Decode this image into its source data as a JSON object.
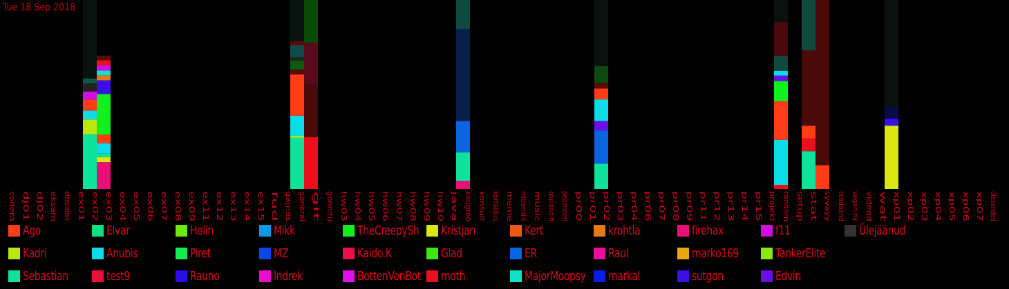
{
  "date_label": "Tue 18 Sep 2018",
  "chart_data": {
    "type": "bar",
    "stacked": true,
    "title": "",
    "xlabel": "",
    "ylabel": "",
    "ylim": [
      0,
      1
    ],
    "grid": false,
    "legend": "bottom",
    "categories": [
      "codera",
      "dj01",
      "dj02",
      "eksam",
      "ettepanek",
      "ex01",
      "ex02",
      "ex03",
      "ex04",
      "ex05",
      "ex06",
      "ex07",
      "ex08",
      "ex09",
      "ex11",
      "ex12",
      "ex13",
      "ex14",
      "ex15",
      "fud",
      "games",
      "general",
      "git",
      "gonnitu",
      "hw03",
      "hw04",
      "hw05",
      "hw06",
      "hw07",
      "hw08",
      "hw09",
      "hw10",
      "java",
      "kaugtöö",
      "konsult",
      "korraldus",
      "meme",
      "mittemilik",
      "music",
      "olulised-fi",
      "pealmoeri",
      "pr00",
      "pr01",
      "pr02",
      "pr03",
      "pr04",
      "pr06",
      "pr07",
      "pr08",
      "pr09",
      "pr11",
      "pr12",
      "pr13",
      "pr14",
      "pr15",
      "projekt",
      "random",
      "setup",
      "stat",
      "syvayy",
      "teadaand",
      "vegan-tik",
      "videod",
      "wat",
      "xp01",
      "xp02",
      "xp03",
      "xp04",
      "xp05",
      "xp06",
      "xp07",
      "ülesanded"
    ],
    "stacks": {
      "ex02": [
        [
          0.289,
          "#0ee29c"
        ],
        [
          0.079,
          "#b8e80f"
        ],
        [
          0.047,
          "#0cdbe8"
        ],
        [
          0.058,
          "#ff3c14"
        ],
        [
          0.043,
          "#cf0fe0"
        ],
        [
          0.044,
          "#222222"
        ],
        [
          0.025,
          "#0e5a4a"
        ],
        [
          0.415,
          "#0a120e"
        ]
      ],
      "ex03": [
        [
          0.142,
          "#ea0e78"
        ],
        [
          0.027,
          "#d9e80e"
        ],
        [
          0.018,
          "#0ee29c"
        ],
        [
          0.055,
          "#0cdbe8"
        ],
        [
          0.046,
          "#ff3c14"
        ],
        [
          0.215,
          "#0ff01e"
        ],
        [
          0.072,
          "#3a0fe8"
        ],
        [
          0.026,
          "#e57a14"
        ],
        [
          0.025,
          "#0ee2c9"
        ],
        [
          0.03,
          "#cf0fe0"
        ],
        [
          0.025,
          "#ec0e1a"
        ],
        [
          0.025,
          "#5a0a0a"
        ],
        [
          0.294,
          "#000000"
        ]
      ],
      "general": [
        [
          0.272,
          "#0ee29c"
        ],
        [
          0.009,
          "#b8e80f"
        ],
        [
          0.107,
          "#0cdbe8"
        ],
        [
          0.218,
          "#ff3c14"
        ],
        [
          0.026,
          "#5a0a0a"
        ],
        [
          0.048,
          "#0e5a0e"
        ],
        [
          0.016,
          "#222222"
        ],
        [
          0.066,
          "#0e4a4a"
        ],
        [
          0.022,
          "#5a0a0a"
        ],
        [
          0.216,
          "#0a120e"
        ]
      ],
      "git": [
        [
          0.275,
          "#ec0e1a"
        ],
        [
          0.278,
          "#4a0a0a"
        ],
        [
          0.221,
          "#5a0a1a"
        ],
        [
          0.226,
          "#0a4a0a"
        ]
      ],
      "kaugtöö": [
        [
          0.043,
          "#ea0e78"
        ],
        [
          0.151,
          "#0ee29c"
        ],
        [
          0.166,
          "#0a64e0"
        ],
        [
          0.486,
          "#0a1e4a"
        ],
        [
          0.154,
          "#0e4a40"
        ]
      ],
      "pr02": [
        [
          0.134,
          "#0ee29c"
        ],
        [
          0.176,
          "#0a64e0"
        ],
        [
          0.05,
          "#6a0fe8"
        ],
        [
          0.114,
          "#0cdbe8"
        ],
        [
          0.058,
          "#ff3c14"
        ],
        [
          0.029,
          "#5a0a0a"
        ],
        [
          0.09,
          "#0e4a0e"
        ],
        [
          0.349,
          "#0a120e"
        ]
      ],
      "random": [
        [
          0.022,
          "#ec0e1a"
        ],
        [
          0.238,
          "#0cdbe8"
        ],
        [
          0.205,
          "#ff3c14"
        ],
        [
          0.106,
          "#0ff01e"
        ],
        [
          0.029,
          "#6a0fe8"
        ],
        [
          0.025,
          "#0cdbe8"
        ],
        [
          0.08,
          "#0e4a40"
        ],
        [
          0.177,
          "#4a0a0a"
        ],
        [
          0.118,
          "#0a120e"
        ]
      ],
      "stat": [
        [
          0.2,
          "#0ee29c"
        ],
        [
          0.068,
          "#ec0e1a"
        ],
        [
          0.067,
          "#ff3c14"
        ],
        [
          0.4,
          "#4a0a0a"
        ],
        [
          0.265,
          "#0e4a40"
        ]
      ],
      "syvayy": [
        [
          0.126,
          "#ff3c14"
        ],
        [
          0.874,
          "#4a0a0a"
        ]
      ],
      "xp01": [
        [
          0.335,
          "#d9e80e"
        ],
        [
          0.037,
          "#3a0fe8"
        ],
        [
          0.062,
          "#0a0a4a"
        ],
        [
          0.566,
          "#0a120e"
        ]
      ]
    },
    "series": [
      {
        "name": "Ago",
        "color": "#ff3c14"
      },
      {
        "name": "Kadri",
        "color": "#b8e80f"
      },
      {
        "name": "Sebastian",
        "color": "#0ee29c"
      },
      {
        "name": "Elvar",
        "color": "#0ee27c"
      },
      {
        "name": "Anubis",
        "color": "#0cdbe8"
      },
      {
        "name": "test9",
        "color": "#ec0e3a"
      },
      {
        "name": "Helin",
        "color": "#6ee80f"
      },
      {
        "name": "Piret",
        "color": "#0ff04e"
      },
      {
        "name": "Rauno",
        "color": "#2a0fe8"
      },
      {
        "name": "Mikk",
        "color": "#0c9ae8"
      },
      {
        "name": "MZ",
        "color": "#0a46e8"
      },
      {
        "name": "Indrek",
        "color": "#ea0ecc"
      },
      {
        "name": "TheCreepySh",
        "color": "#0ff01e"
      },
      {
        "name": "Kaido.K",
        "color": "#ea0e4a"
      },
      {
        "name": "BottenVonBot",
        "color": "#e00ee8"
      },
      {
        "name": "Kristjan",
        "color": "#d9e80e"
      },
      {
        "name": "Glad",
        "color": "#3ce80f"
      },
      {
        "name": "moth",
        "color": "#ec0e1a"
      },
      {
        "name": "Kert",
        "color": "#ea5a14"
      },
      {
        "name": "ER",
        "color": "#0a64e0"
      },
      {
        "name": "MajorMoopsy",
        "color": "#0ee2c9"
      },
      {
        "name": "krohtla",
        "color": "#e57a14"
      },
      {
        "name": "Raul",
        "color": "#ea0ea0"
      },
      {
        "name": "markal",
        "color": "#0a1ee8"
      },
      {
        "name": "firehax",
        "color": "#ea0e78"
      },
      {
        "name": "marko169",
        "color": "#e8a80e"
      },
      {
        "name": "sutgon",
        "color": "#3a0fe8"
      },
      {
        "name": "f11",
        "color": "#cf0fe0"
      },
      {
        "name": "TankerElite",
        "color": "#8ae80f"
      },
      {
        "name": "Edvin",
        "color": "#6a0fe8"
      },
      {
        "name": "Ülejäänud",
        "color": "#333333"
      }
    ]
  }
}
